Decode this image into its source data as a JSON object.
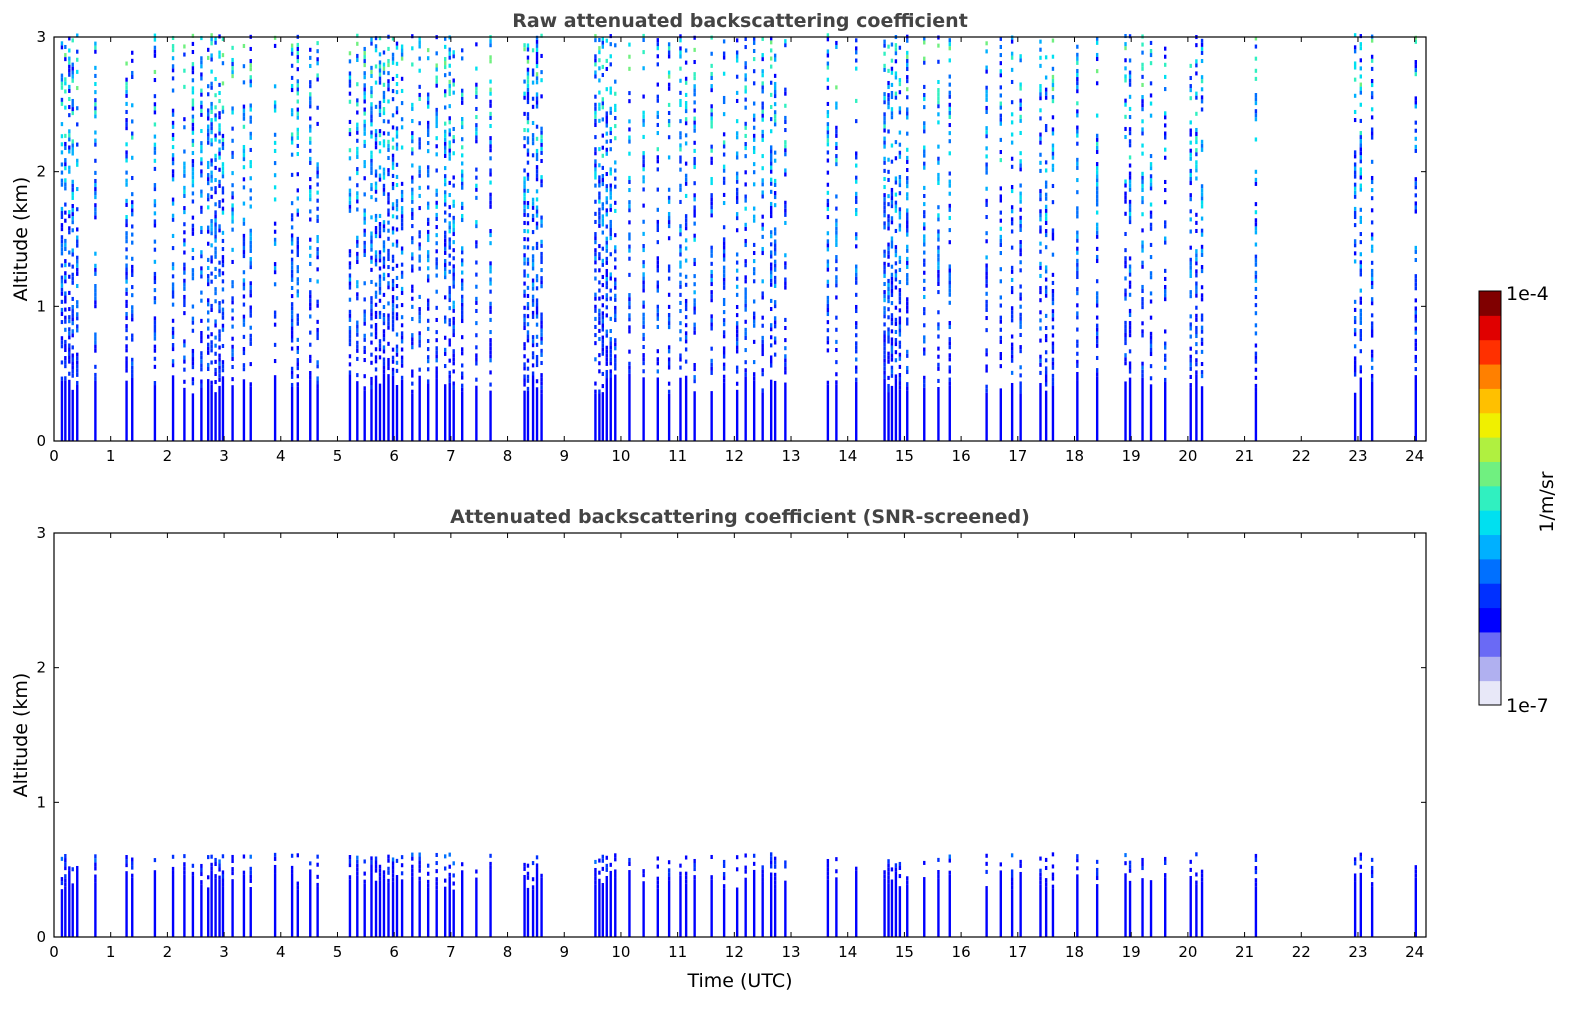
{
  "colors": {
    "colormap": [
      "#e8e8f8",
      "#b0b0f0",
      "#6a6af5",
      "#0000ff",
      "#0030ff",
      "#0070ff",
      "#00b0ff",
      "#00e0f0",
      "#30f0c0",
      "#70f080",
      "#b0f040",
      "#f0f000",
      "#ffc000",
      "#ff8000",
      "#ff3000",
      "#e00000",
      "#800000"
    ],
    "frame": "#000000",
    "title": "#444444"
  },
  "colorbar": {
    "max_label": "1e-4",
    "min_label": "1e-7",
    "unit_label": "1/m/sr",
    "scale": "log"
  },
  "chart_data": [
    {
      "type": "heatmap",
      "title": "Raw attenuated backscattering coefficient",
      "xlabel": "",
      "ylabel": "Altitude (km)",
      "xlim": [
        0,
        24.2
      ],
      "ylim": [
        0,
        3
      ],
      "xticks": [
        "0",
        "1",
        "2",
        "3",
        "4",
        "5",
        "6",
        "7",
        "8",
        "9",
        "10",
        "11",
        "12",
        "13",
        "14",
        "15",
        "16",
        "17",
        "18",
        "19",
        "20",
        "21",
        "22",
        "23",
        "24"
      ],
      "yticks": [
        "0",
        "1",
        "2",
        "3"
      ],
      "z_unit": "1/m/sr",
      "z_range": [
        1e-07,
        0.0001
      ],
      "profile_times_utc": [
        0.14,
        0.2,
        0.27,
        0.33,
        0.41,
        0.73,
        1.28,
        1.38,
        1.78,
        2.1,
        2.3,
        2.45,
        2.6,
        2.72,
        2.78,
        2.85,
        2.92,
        2.98,
        3.15,
        3.35,
        3.47,
        3.9,
        4.2,
        4.3,
        4.52,
        4.65,
        5.22,
        5.35,
        5.48,
        5.6,
        5.68,
        5.75,
        5.82,
        5.9,
        5.98,
        6.05,
        6.14,
        6.32,
        6.45,
        6.6,
        6.75,
        6.9,
        6.98,
        7.05,
        7.2,
        7.45,
        7.7,
        8.3,
        8.36,
        8.45,
        8.52,
        8.6,
        9.55,
        9.62,
        9.68,
        9.75,
        9.82,
        9.9,
        10.15,
        10.4,
        10.65,
        10.85,
        11.05,
        11.15,
        11.3,
        11.6,
        11.82,
        12.05,
        12.2,
        12.35,
        12.5,
        12.65,
        12.72,
        12.9,
        13.65,
        13.8,
        14.15,
        14.65,
        14.72,
        14.78,
        14.85,
        14.92,
        15.05,
        15.35,
        15.6,
        15.8,
        16.45,
        16.7,
        16.9,
        17.05,
        17.4,
        17.5,
        17.62,
        18.05,
        18.4,
        18.9,
        18.98,
        19.2,
        19.35,
        19.6,
        20.05,
        20.15,
        20.25,
        21.2,
        22.95,
        23.05,
        23.25,
        24.02
      ],
      "notes": "Dense columns near 2.9, 5.9, 8.5, 9.7 and 14.85 UTC; near-surface layer below 0.5 km"
    },
    {
      "type": "heatmap",
      "title": "Attenuated backscattering coefficient (SNR-screened)",
      "xlabel": "Time (UTC)",
      "ylabel": "Altitude (km)",
      "xlim": [
        0,
        24.2
      ],
      "ylim": [
        0,
        3
      ],
      "xticks": [
        "0",
        "1",
        "2",
        "3",
        "4",
        "5",
        "6",
        "7",
        "8",
        "9",
        "10",
        "11",
        "12",
        "13",
        "14",
        "15",
        "16",
        "17",
        "18",
        "19",
        "20",
        "21",
        "22",
        "23",
        "24"
      ],
      "yticks": [
        "0",
        "1",
        "2",
        "3"
      ],
      "z_unit": "1/m/sr",
      "z_range": [
        1e-07,
        0.0001
      ],
      "profile_times_utc": [
        0.14,
        0.2,
        0.27,
        0.33,
        0.41,
        0.73,
        1.28,
        1.38,
        1.78,
        2.1,
        2.3,
        2.45,
        2.6,
        2.72,
        2.78,
        2.85,
        2.92,
        2.98,
        3.15,
        3.35,
        3.47,
        3.9,
        4.2,
        4.3,
        4.52,
        4.65,
        5.22,
        5.35,
        5.48,
        5.6,
        5.68,
        5.75,
        5.82,
        5.9,
        5.98,
        6.05,
        6.14,
        6.32,
        6.45,
        6.6,
        6.75,
        6.9,
        6.98,
        7.05,
        7.2,
        7.45,
        7.7,
        8.3,
        8.36,
        8.45,
        8.52,
        8.6,
        9.55,
        9.62,
        9.68,
        9.75,
        9.82,
        9.9,
        10.15,
        10.4,
        10.65,
        10.85,
        11.05,
        11.15,
        11.3,
        11.6,
        11.82,
        12.05,
        12.2,
        12.35,
        12.5,
        12.65,
        12.72,
        12.9,
        13.65,
        13.8,
        14.15,
        14.65,
        14.72,
        14.78,
        14.85,
        14.92,
        15.05,
        15.35,
        15.6,
        15.8,
        16.45,
        16.7,
        16.9,
        17.05,
        17.4,
        17.5,
        17.62,
        18.05,
        18.4,
        18.9,
        18.98,
        19.2,
        19.35,
        19.6,
        20.05,
        20.15,
        20.25,
        21.2,
        22.95,
        23.05,
        23.25,
        24.02
      ],
      "max_altitude_km": 0.6,
      "notes": "Signal retained mostly below ~0.6 km; isolated points aloft"
    }
  ]
}
